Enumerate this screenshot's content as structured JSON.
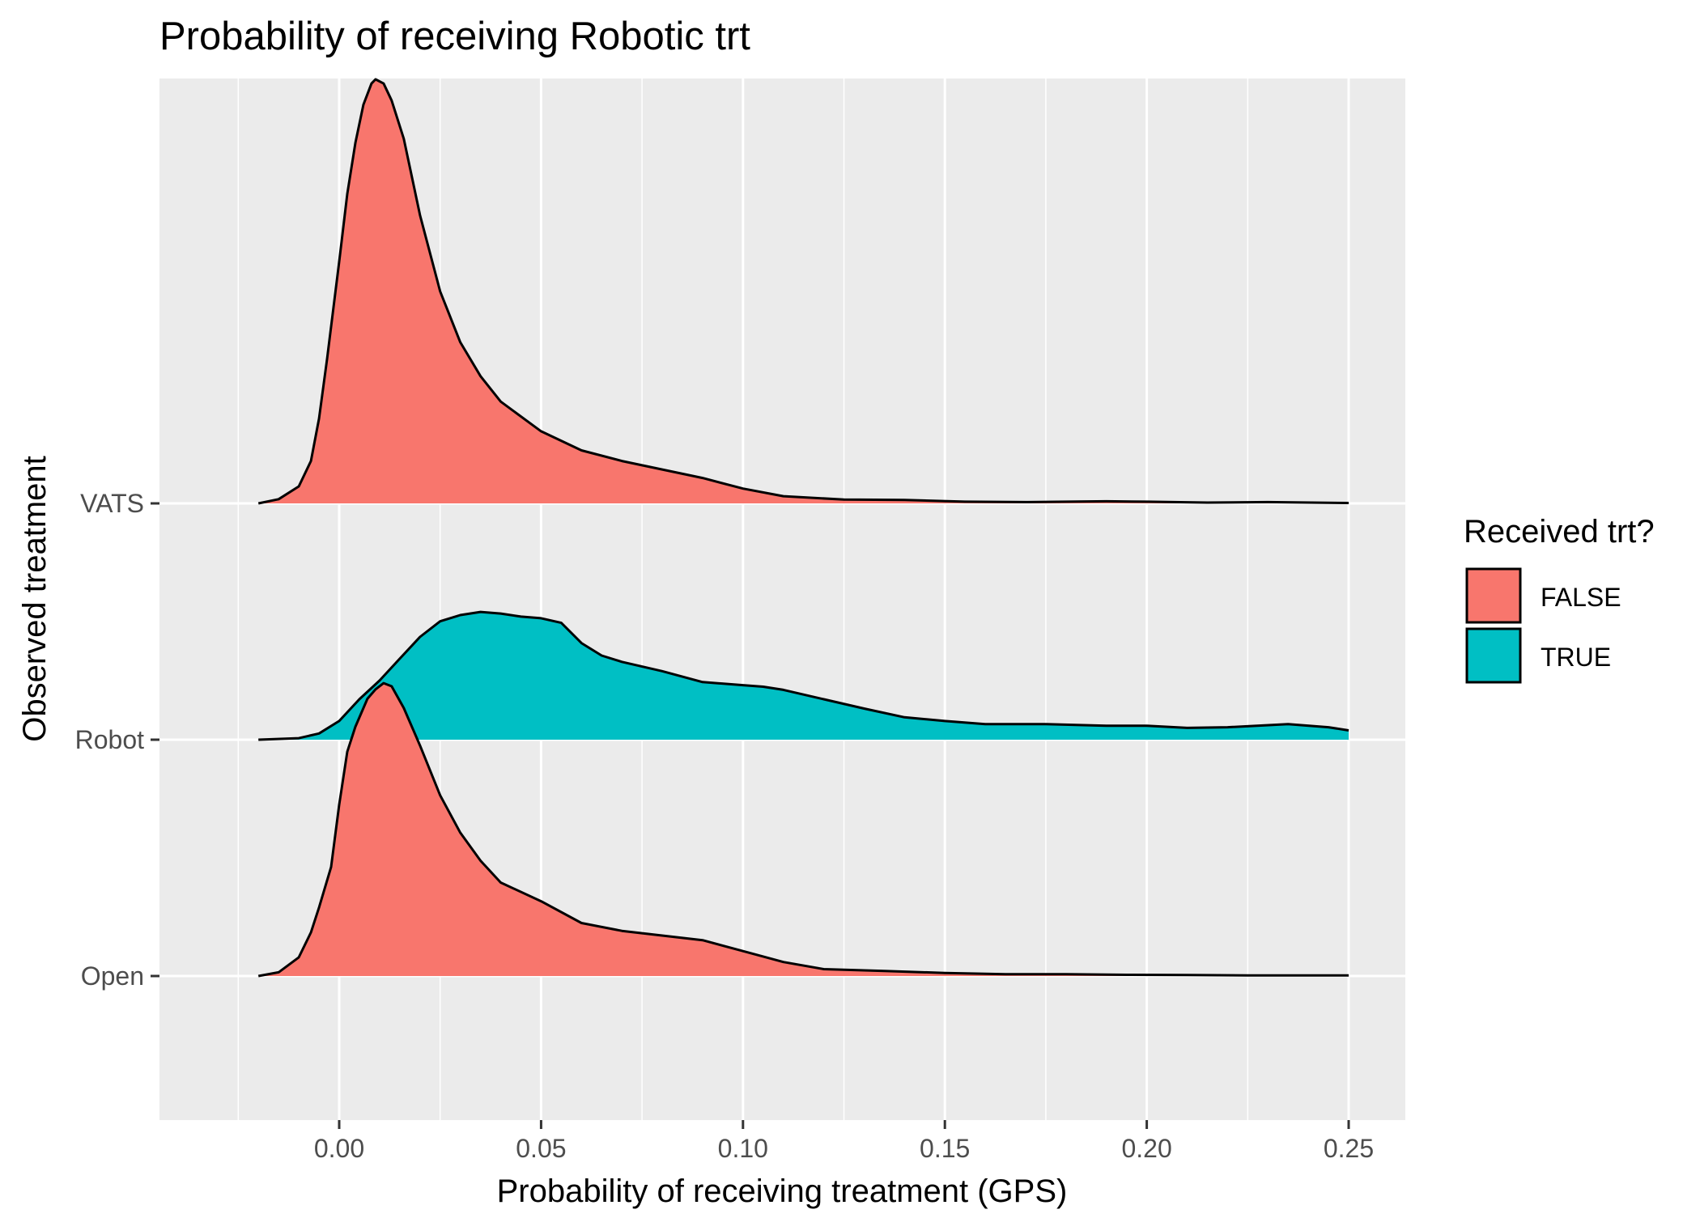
{
  "chart_data": {
    "type": "ridgeline",
    "title": "Probability of receiving Robotic trt",
    "xlabel": "Probability of receiving treatment (GPS)",
    "ylabel": "Observed treatment",
    "xlim": [
      -0.045,
      0.263
    ],
    "x_ticks": [
      "0.00",
      "0.05",
      "0.10",
      "0.15",
      "0.20",
      "0.25"
    ],
    "x_tick_values": [
      0,
      0.05,
      0.1,
      0.15,
      0.2,
      0.25
    ],
    "categories": [
      "Open",
      "Robot",
      "VATS"
    ],
    "grid": true,
    "legend": {
      "title": "Received trt?",
      "position": "right",
      "entries": [
        {
          "label": "FALSE",
          "color": "#F8766D"
        },
        {
          "label": "TRUE",
          "color": "#00BFC4"
        }
      ]
    },
    "series": [
      {
        "category": "VATS",
        "fill": "FALSE",
        "points": [
          [
            -0.02,
            0
          ],
          [
            -0.015,
            0.01
          ],
          [
            -0.01,
            0.04
          ],
          [
            -0.007,
            0.1
          ],
          [
            -0.005,
            0.2
          ],
          [
            -0.003,
            0.34
          ],
          [
            0,
            0.57
          ],
          [
            0.002,
            0.73
          ],
          [
            0.004,
            0.85
          ],
          [
            0.006,
            0.94
          ],
          [
            0.008,
            0.99
          ],
          [
            0.009,
            1.0
          ],
          [
            0.011,
            0.99
          ],
          [
            0.013,
            0.95
          ],
          [
            0.016,
            0.86
          ],
          [
            0.02,
            0.68
          ],
          [
            0.025,
            0.5
          ],
          [
            0.03,
            0.38
          ],
          [
            0.035,
            0.3
          ],
          [
            0.04,
            0.24
          ],
          [
            0.05,
            0.17
          ],
          [
            0.06,
            0.125
          ],
          [
            0.07,
            0.1
          ],
          [
            0.08,
            0.08
          ],
          [
            0.09,
            0.06
          ],
          [
            0.1,
            0.035
          ],
          [
            0.11,
            0.017
          ],
          [
            0.125,
            0.009
          ],
          [
            0.14,
            0.008
          ],
          [
            0.155,
            0.004
          ],
          [
            0.17,
            0.003
          ],
          [
            0.19,
            0.005
          ],
          [
            0.2,
            0.004
          ],
          [
            0.215,
            0.002
          ],
          [
            0.23,
            0.003
          ],
          [
            0.25,
            0.001
          ]
        ]
      },
      {
        "category": "Robot",
        "fill": "TRUE",
        "points": [
          [
            -0.02,
            0
          ],
          [
            -0.01,
            0.005
          ],
          [
            -0.005,
            0.02
          ],
          [
            0,
            0.06
          ],
          [
            0.005,
            0.13
          ],
          [
            0.01,
            0.19
          ],
          [
            0.015,
            0.26
          ],
          [
            0.02,
            0.33
          ],
          [
            0.025,
            0.38
          ],
          [
            0.03,
            0.4
          ],
          [
            0.035,
            0.41
          ],
          [
            0.04,
            0.405
          ],
          [
            0.045,
            0.395
          ],
          [
            0.05,
            0.39
          ],
          [
            0.055,
            0.375
          ],
          [
            0.06,
            0.31
          ],
          [
            0.065,
            0.27
          ],
          [
            0.07,
            0.25
          ],
          [
            0.08,
            0.22
          ],
          [
            0.09,
            0.185
          ],
          [
            0.1,
            0.175
          ],
          [
            0.105,
            0.17
          ],
          [
            0.11,
            0.16
          ],
          [
            0.12,
            0.13
          ],
          [
            0.13,
            0.1
          ],
          [
            0.14,
            0.072
          ],
          [
            0.15,
            0.06
          ],
          [
            0.16,
            0.05
          ],
          [
            0.175,
            0.05
          ],
          [
            0.19,
            0.045
          ],
          [
            0.2,
            0.045
          ],
          [
            0.21,
            0.038
          ],
          [
            0.22,
            0.04
          ],
          [
            0.235,
            0.05
          ],
          [
            0.245,
            0.04
          ],
          [
            0.25,
            0.03
          ]
        ]
      },
      {
        "category": "Open",
        "fill": "FALSE",
        "points": [
          [
            -0.02,
            0
          ],
          [
            -0.015,
            0.012
          ],
          [
            -0.01,
            0.06
          ],
          [
            -0.007,
            0.14
          ],
          [
            -0.005,
            0.22
          ],
          [
            -0.002,
            0.35
          ],
          [
            0,
            0.55
          ],
          [
            0.002,
            0.72
          ],
          [
            0.004,
            0.8
          ],
          [
            0.007,
            0.89
          ],
          [
            0.009,
            0.92
          ],
          [
            0.011,
            0.94
          ],
          [
            0.013,
            0.93
          ],
          [
            0.016,
            0.86
          ],
          [
            0.02,
            0.74
          ],
          [
            0.025,
            0.58
          ],
          [
            0.03,
            0.46
          ],
          [
            0.035,
            0.37
          ],
          [
            0.04,
            0.3
          ],
          [
            0.05,
            0.24
          ],
          [
            0.06,
            0.17
          ],
          [
            0.07,
            0.145
          ],
          [
            0.08,
            0.13
          ],
          [
            0.09,
            0.115
          ],
          [
            0.1,
            0.08
          ],
          [
            0.11,
            0.045
          ],
          [
            0.12,
            0.022
          ],
          [
            0.135,
            0.016
          ],
          [
            0.15,
            0.01
          ],
          [
            0.165,
            0.006
          ],
          [
            0.18,
            0.006
          ],
          [
            0.195,
            0.004
          ],
          [
            0.21,
            0.003
          ],
          [
            0.225,
            0.002
          ],
          [
            0.24,
            0.002
          ],
          [
            0.25,
            0.002
          ]
        ]
      }
    ]
  }
}
